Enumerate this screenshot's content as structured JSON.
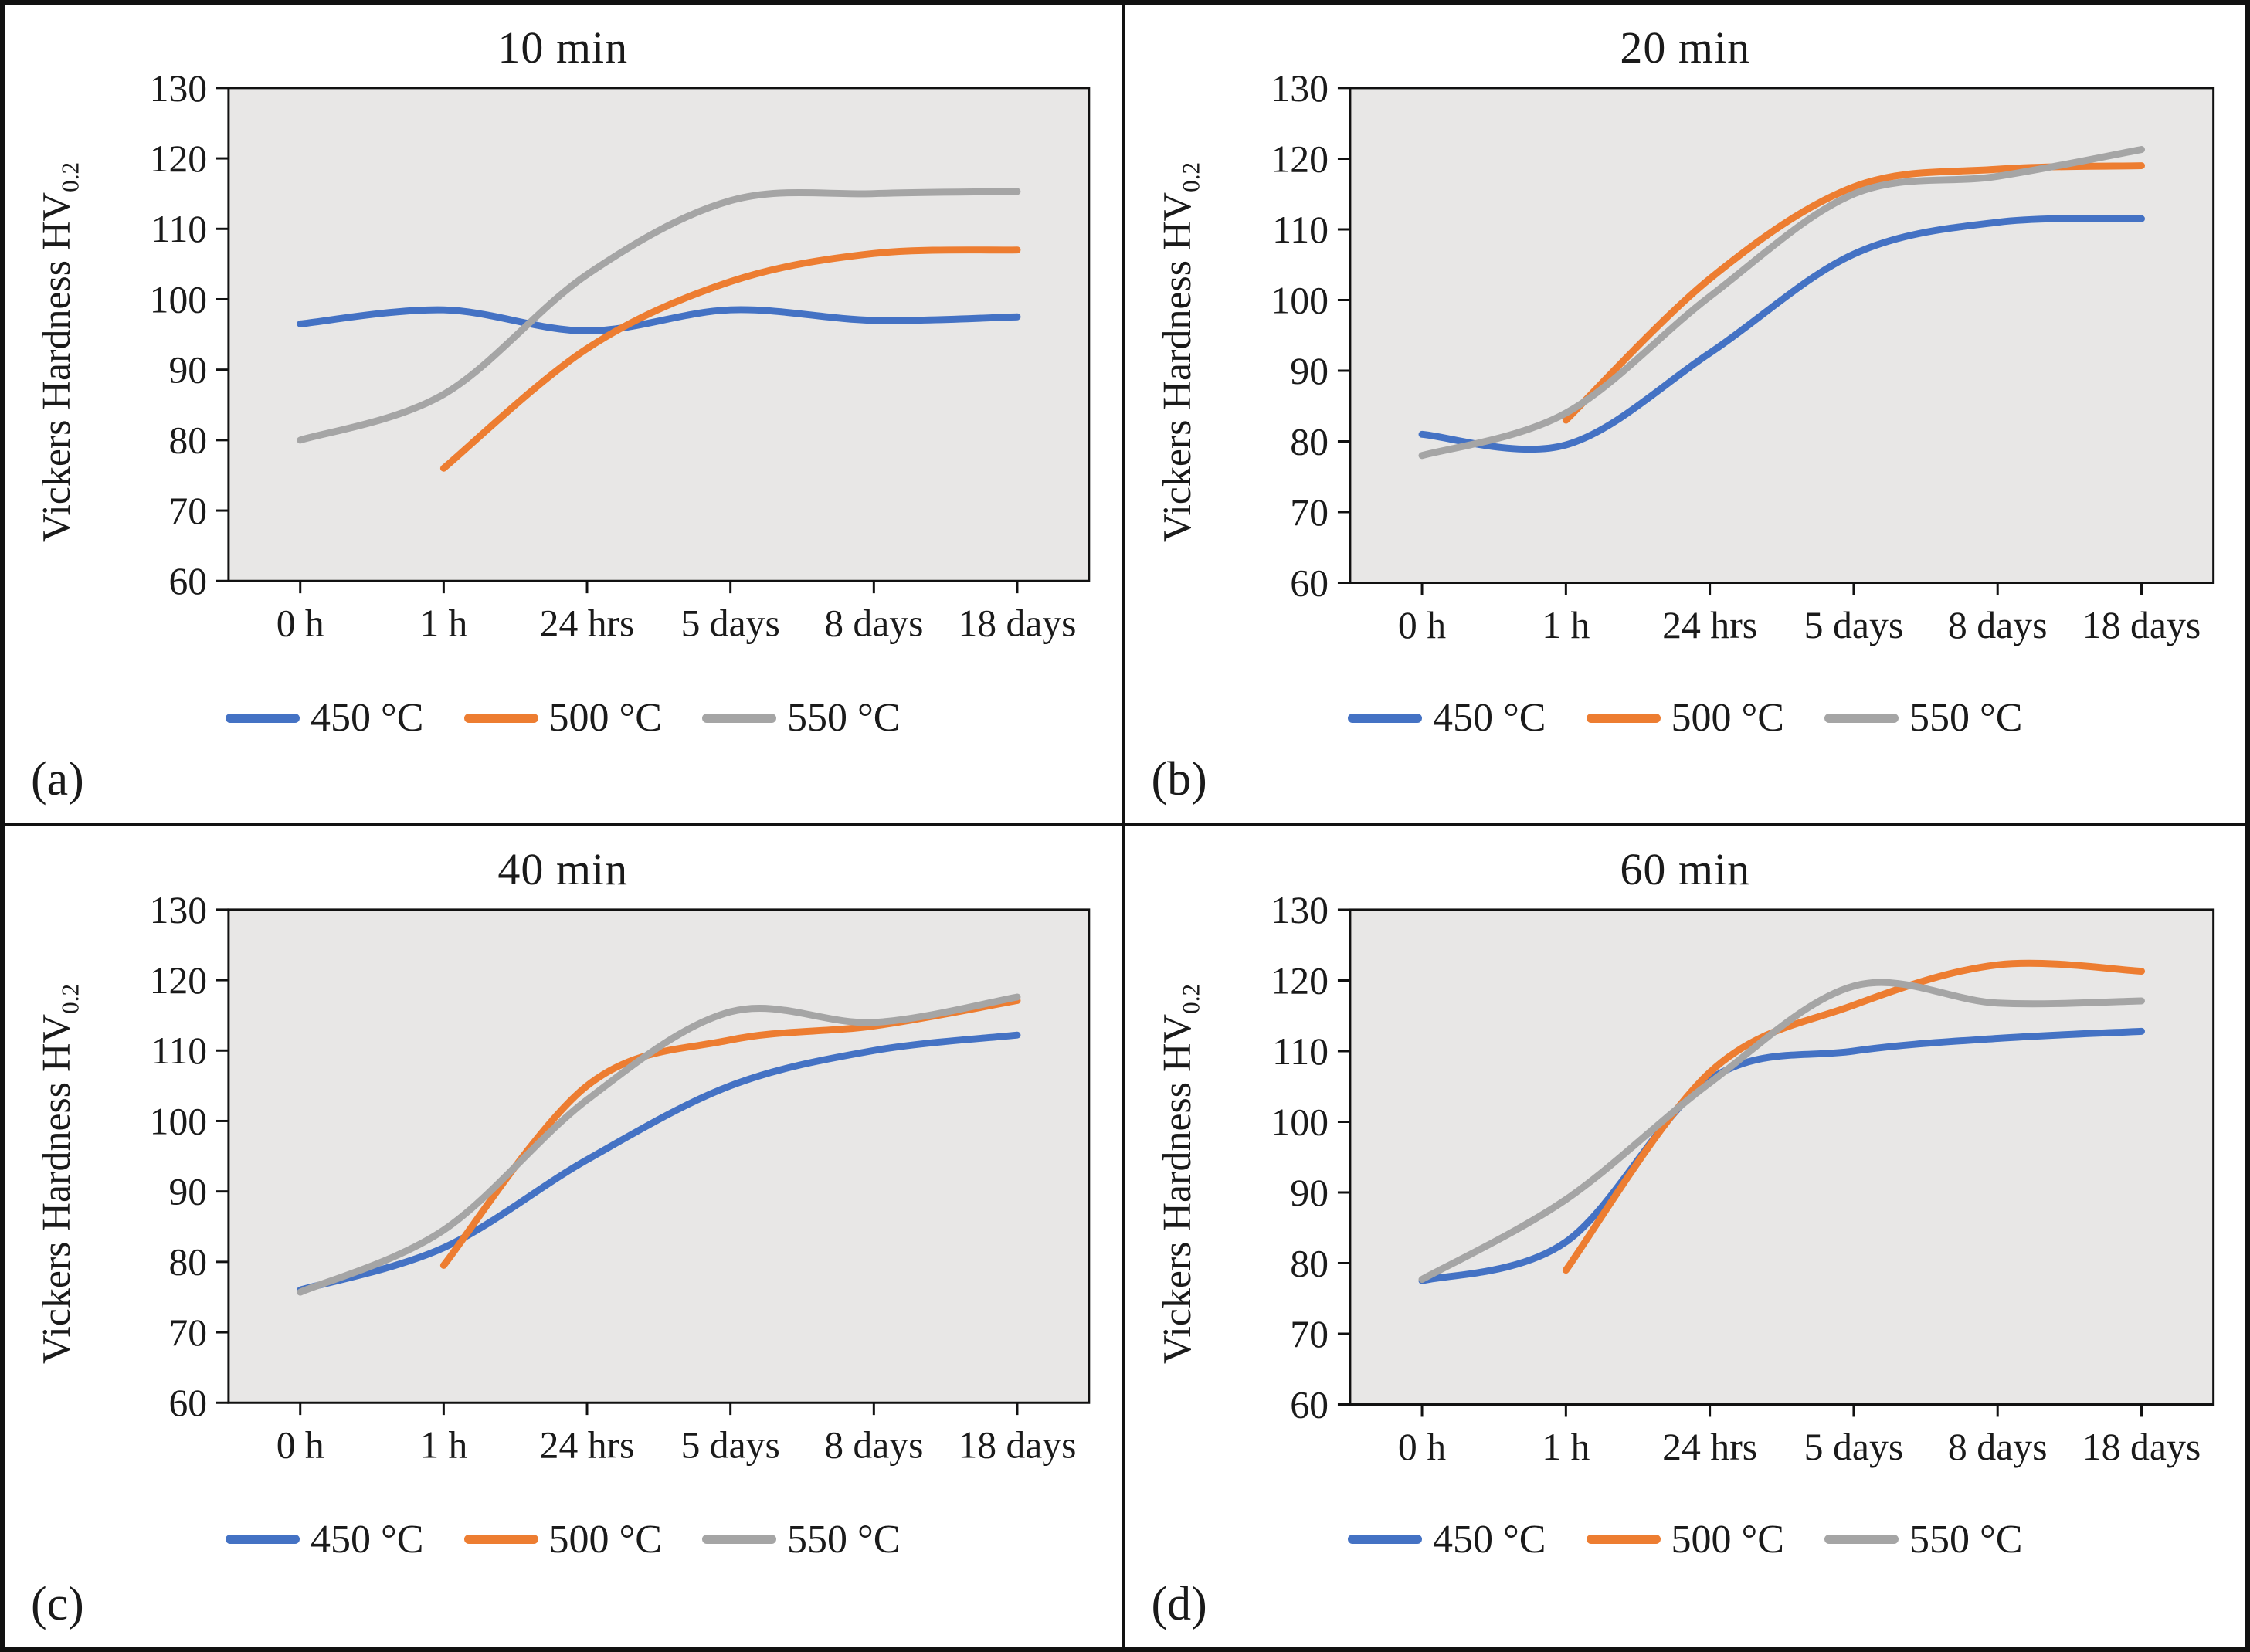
{
  "figure": {
    "ylabel_main": "Vickers Hardness HV",
    "ylabel_sub": "0.2",
    "colors": {
      "c450": "#4472C4",
      "c500": "#ED7D31",
      "c550": "#A5A5A5"
    },
    "plot_bg": "#e8e7e6",
    "border_color": "#111111"
  },
  "chart_data": [
    {
      "type": "line",
      "title": "10 min",
      "panel_label": "(a)",
      "categories": [
        "0 h",
        "1 h",
        "24 hrs",
        "5 days",
        "8 days",
        "18 days"
      ],
      "ylabel_main": "Vickers Hardness HV",
      "ylabel_sub": "0.2",
      "ylim": [
        60,
        130
      ],
      "ytick_step": 10,
      "grid": false,
      "legend_position": "bottom",
      "plot_bg": "#e8e7e6",
      "series": [
        {
          "name": "450 °C",
          "color": "#4472C4",
          "values": [
            96.5,
            98.5,
            95.5,
            98.5,
            97,
            97.5
          ]
        },
        {
          "name": "500 °C",
          "color": "#ED7D31",
          "values": [
            null,
            76,
            93,
            102.5,
            106.5,
            107
          ]
        },
        {
          "name": "550 °C",
          "color": "#A5A5A5",
          "values": [
            80,
            86.5,
            103.5,
            114,
            115,
            115.3
          ]
        }
      ]
    },
    {
      "type": "line",
      "title": "20 min",
      "panel_label": "(b)",
      "categories": [
        "0 h",
        "1 h",
        "24 hrs",
        "5 days",
        "8 days",
        "18 days"
      ],
      "ylabel_main": "Vickers Hardness HV",
      "ylabel_sub": "0.2",
      "ylim": [
        60,
        130
      ],
      "ytick_step": 10,
      "grid": false,
      "legend_position": "bottom",
      "plot_bg": "#e8e7e6",
      "series": [
        {
          "name": "450 °C",
          "color": "#4472C4",
          "values": [
            81,
            79.5,
            92.5,
            106.5,
            111,
            111.5
          ]
        },
        {
          "name": "500 °C",
          "color": "#ED7D31",
          "values": [
            null,
            83,
            103,
            116,
            118.5,
            119
          ]
        },
        {
          "name": "550 °C",
          "color": "#A5A5A5",
          "values": [
            78,
            84,
            100.5,
            115,
            117.5,
            121.3
          ]
        }
      ]
    },
    {
      "type": "line",
      "title": "40 min",
      "panel_label": "(c)",
      "categories": [
        "0 h",
        "1 h",
        "24 hrs",
        "5 days",
        "8 days",
        "18 days"
      ],
      "ylabel_main": "Vickers Hardness HV",
      "ylabel_sub": "0.2",
      "ylim": [
        60,
        130
      ],
      "ytick_step": 10,
      "grid": false,
      "legend_position": "bottom",
      "plot_bg": "#e8e7e6",
      "series": [
        {
          "name": "450 °C",
          "color": "#4472C4",
          "values": [
            76,
            82,
            94.5,
            105,
            110,
            112.2
          ]
        },
        {
          "name": "500 °C",
          "color": "#ED7D31",
          "values": [
            null,
            79.5,
            105,
            111.5,
            113.5,
            117.1
          ]
        },
        {
          "name": "550 °C",
          "color": "#A5A5A5",
          "values": [
            75.7,
            84.5,
            103,
            115.5,
            114,
            117.6
          ]
        }
      ]
    },
    {
      "type": "line",
      "title": "60 min",
      "panel_label": "(d)",
      "categories": [
        "0 h",
        "1 h",
        "24 hrs",
        "5 days",
        "8 days",
        "18 days"
      ],
      "ylabel_main": "Vickers Hardness HV",
      "ylabel_sub": "0.2",
      "ylim": [
        60,
        130
      ],
      "ytick_step": 10,
      "grid": false,
      "legend_position": "bottom",
      "plot_bg": "#e8e7e6",
      "series": [
        {
          "name": "450 °C",
          "color": "#4472C4",
          "values": [
            77.5,
            83,
            106,
            110,
            111.8,
            112.8
          ]
        },
        {
          "name": "500 °C",
          "color": "#ED7D31",
          "values": [
            null,
            79,
            107,
            116.5,
            122.2,
            121.3
          ]
        },
        {
          "name": "550 °C",
          "color": "#A5A5A5",
          "values": [
            77.7,
            89,
            105.5,
            119.2,
            116.8,
            117.1
          ]
        }
      ]
    }
  ]
}
